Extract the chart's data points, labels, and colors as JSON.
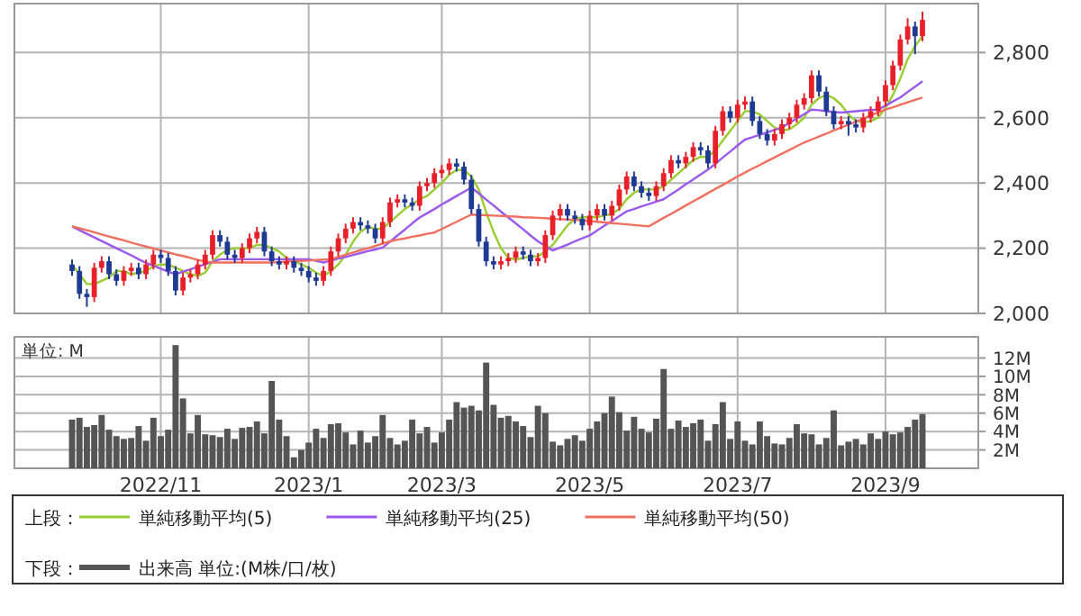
{
  "chart_data": [
    {
      "type": "candlestick",
      "categories": [
        null,
        null,
        null,
        null,
        null,
        null,
        null,
        null,
        null,
        null,
        null,
        null,
        "2022/11",
        null,
        null,
        null,
        null,
        null,
        null,
        null,
        null,
        null,
        null,
        null,
        null,
        null,
        null,
        null,
        null,
        null,
        null,
        null,
        "2023/1",
        null,
        null,
        null,
        null,
        null,
        null,
        null,
        null,
        null,
        null,
        null,
        null,
        null,
        null,
        null,
        null,
        null,
        "2023/3",
        null,
        null,
        null,
        null,
        null,
        null,
        null,
        null,
        null,
        null,
        null,
        null,
        null,
        null,
        null,
        null,
        null,
        null,
        null,
        "2023/5",
        null,
        null,
        null,
        null,
        null,
        null,
        null,
        null,
        null,
        null,
        null,
        null,
        null,
        null,
        null,
        null,
        null,
        null,
        null,
        "2023/7",
        null,
        null,
        null,
        null,
        null,
        null,
        null,
        null,
        null,
        null,
        null,
        null,
        null,
        null,
        null,
        null,
        null,
        null,
        null,
        "2023/9",
        null,
        null,
        null,
        null,
        null
      ],
      "ohlc": [
        [
          2150,
          2165,
          2115,
          2130
        ],
        [
          2130,
          2145,
          2045,
          2060
        ],
        [
          2060,
          2075,
          2020,
          2050
        ],
        [
          2050,
          2155,
          2035,
          2140
        ],
        [
          2140,
          2175,
          2125,
          2160
        ],
        [
          2160,
          2175,
          2105,
          2120
        ],
        [
          2120,
          2135,
          2085,
          2100
        ],
        [
          2100,
          2145,
          2085,
          2130
        ],
        [
          2130,
          2155,
          2115,
          2140
        ],
        [
          2140,
          2155,
          2105,
          2120
        ],
        [
          2120,
          2165,
          2105,
          2150
        ],
        [
          2150,
          2195,
          2135,
          2180
        ],
        [
          2180,
          2195,
          2155,
          2170
        ],
        [
          2170,
          2185,
          2115,
          2130
        ],
        [
          2130,
          2145,
          2055,
          2070
        ],
        [
          2070,
          2125,
          2055,
          2110
        ],
        [
          2110,
          2135,
          2095,
          2120
        ],
        [
          2120,
          2165,
          2105,
          2150
        ],
        [
          2150,
          2195,
          2135,
          2180
        ],
        [
          2180,
          2255,
          2165,
          2240
        ],
        [
          2240,
          2255,
          2205,
          2220
        ],
        [
          2220,
          2235,
          2165,
          2180
        ],
        [
          2180,
          2195,
          2155,
          2170
        ],
        [
          2170,
          2215,
          2155,
          2200
        ],
        [
          2200,
          2245,
          2185,
          2230
        ],
        [
          2230,
          2265,
          2215,
          2250
        ],
        [
          2250,
          2265,
          2175,
          2190
        ],
        [
          2190,
          2205,
          2145,
          2160
        ],
        [
          2160,
          2175,
          2135,
          2150
        ],
        [
          2150,
          2175,
          2135,
          2160
        ],
        [
          2160,
          2175,
          2125,
          2140
        ],
        [
          2140,
          2155,
          2115,
          2130
        ],
        [
          2130,
          2145,
          2095,
          2110
        ],
        [
          2110,
          2125,
          2085,
          2100
        ],
        [
          2100,
          2145,
          2085,
          2130
        ],
        [
          2130,
          2205,
          2115,
          2190
        ],
        [
          2190,
          2245,
          2175,
          2230
        ],
        [
          2230,
          2275,
          2215,
          2260
        ],
        [
          2260,
          2295,
          2245,
          2280
        ],
        [
          2280,
          2295,
          2255,
          2270
        ],
        [
          2270,
          2285,
          2245,
          2260
        ],
        [
          2260,
          2275,
          2215,
          2230
        ],
        [
          2230,
          2295,
          2215,
          2280
        ],
        [
          2280,
          2355,
          2265,
          2340
        ],
        [
          2340,
          2365,
          2325,
          2350
        ],
        [
          2350,
          2365,
          2325,
          2340
        ],
        [
          2340,
          2355,
          2315,
          2330
        ],
        [
          2330,
          2405,
          2315,
          2390
        ],
        [
          2390,
          2415,
          2375,
          2400
        ],
        [
          2400,
          2445,
          2385,
          2430
        ],
        [
          2430,
          2455,
          2415,
          2440
        ],
        [
          2440,
          2475,
          2425,
          2460
        ],
        [
          2460,
          2475,
          2435,
          2450
        ],
        [
          2450,
          2465,
          2395,
          2410
        ],
        [
          2410,
          2425,
          2305,
          2320
        ],
        [
          2320,
          2335,
          2205,
          2220
        ],
        [
          2220,
          2235,
          2145,
          2160
        ],
        [
          2160,
          2175,
          2135,
          2150
        ],
        [
          2150,
          2175,
          2135,
          2160
        ],
        [
          2160,
          2185,
          2145,
          2170
        ],
        [
          2170,
          2205,
          2155,
          2190
        ],
        [
          2190,
          2205,
          2165,
          2180
        ],
        [
          2180,
          2195,
          2145,
          2160
        ],
        [
          2160,
          2185,
          2145,
          2170
        ],
        [
          2170,
          2255,
          2155,
          2240
        ],
        [
          2240,
          2315,
          2225,
          2300
        ],
        [
          2300,
          2335,
          2285,
          2320
        ],
        [
          2320,
          2335,
          2285,
          2300
        ],
        [
          2300,
          2315,
          2275,
          2290
        ],
        [
          2290,
          2305,
          2255,
          2270
        ],
        [
          2270,
          2315,
          2255,
          2300
        ],
        [
          2300,
          2335,
          2285,
          2320
        ],
        [
          2320,
          2335,
          2285,
          2300
        ],
        [
          2300,
          2345,
          2285,
          2330
        ],
        [
          2330,
          2395,
          2315,
          2380
        ],
        [
          2380,
          2435,
          2365,
          2420
        ],
        [
          2420,
          2435,
          2375,
          2390
        ],
        [
          2390,
          2405,
          2355,
          2370
        ],
        [
          2370,
          2385,
          2345,
          2360
        ],
        [
          2360,
          2405,
          2345,
          2390
        ],
        [
          2390,
          2445,
          2375,
          2430
        ],
        [
          2430,
          2485,
          2415,
          2470
        ],
        [
          2470,
          2485,
          2445,
          2460
        ],
        [
          2460,
          2495,
          2445,
          2480
        ],
        [
          2480,
          2525,
          2465,
          2510
        ],
        [
          2510,
          2525,
          2485,
          2500
        ],
        [
          2500,
          2515,
          2445,
          2460
        ],
        [
          2460,
          2575,
          2445,
          2560
        ],
        [
          2560,
          2635,
          2545,
          2620
        ],
        [
          2620,
          2635,
          2585,
          2600
        ],
        [
          2600,
          2655,
          2585,
          2640
        ],
        [
          2640,
          2665,
          2625,
          2650
        ],
        [
          2650,
          2665,
          2575,
          2590
        ],
        [
          2590,
          2605,
          2535,
          2550
        ],
        [
          2550,
          2565,
          2515,
          2530
        ],
        [
          2530,
          2565,
          2515,
          2550
        ],
        [
          2550,
          2595,
          2535,
          2580
        ],
        [
          2580,
          2615,
          2565,
          2600
        ],
        [
          2600,
          2655,
          2585,
          2640
        ],
        [
          2640,
          2675,
          2625,
          2660
        ],
        [
          2660,
          2745,
          2645,
          2730
        ],
        [
          2730,
          2745,
          2665,
          2680
        ],
        [
          2680,
          2695,
          2605,
          2620
        ],
        [
          2620,
          2635,
          2565,
          2580
        ],
        [
          2580,
          2605,
          2565,
          2590
        ],
        [
          2590,
          2605,
          2545,
          2580
        ],
        [
          2580,
          2595,
          2555,
          2570
        ],
        [
          2570,
          2615,
          2555,
          2600
        ],
        [
          2600,
          2635,
          2585,
          2620
        ],
        [
          2620,
          2665,
          2605,
          2650
        ],
        [
          2650,
          2715,
          2635,
          2700
        ],
        [
          2700,
          2775,
          2685,
          2760
        ],
        [
          2760,
          2855,
          2745,
          2840
        ],
        [
          2840,
          2905,
          2825,
          2880
        ],
        [
          2880,
          2895,
          2795,
          2850
        ],
        [
          2850,
          2925,
          2835,
          2900
        ]
      ],
      "series": [
        {
          "name": "単純移動平均(5)",
          "type": "line",
          "color": "#9acd32",
          "values": [
            2150,
            2120,
            2090,
            2090,
            2100,
            2110,
            2130,
            2130,
            2120,
            2125,
            2130,
            2145,
            2150,
            2150,
            2140,
            2130,
            2120,
            2115,
            2125,
            2160,
            2180,
            2195,
            2200,
            2200,
            2200,
            2210,
            2210,
            2200,
            2190,
            2170,
            2160,
            2150,
            2140,
            2125,
            2115,
            2130,
            2150,
            2180,
            2220,
            2250,
            2265,
            2260,
            2260,
            2280,
            2300,
            2320,
            2335,
            2350,
            2360,
            2380,
            2400,
            2425,
            2440,
            2440,
            2420,
            2380,
            2310,
            2250,
            2200,
            2170,
            2165,
            2170,
            2175,
            2175,
            2190,
            2210,
            2240,
            2270,
            2290,
            2295,
            2295,
            2295,
            2300,
            2305,
            2320,
            2350,
            2370,
            2380,
            2380,
            2380,
            2390,
            2410,
            2430,
            2450,
            2470,
            2480,
            2480,
            2500,
            2530,
            2560,
            2590,
            2620,
            2620,
            2610,
            2590,
            2570,
            2560,
            2565,
            2580,
            2600,
            2640,
            2660,
            2670,
            2660,
            2640,
            2610,
            2590,
            2585,
            2590,
            2600,
            2630,
            2670,
            2720,
            2780,
            2820,
            2850
          ]
        },
        {
          "name": "単純移動平均(25)",
          "type": "line",
          "color": "#9b59f0",
          "values": [
            2267,
            2255,
            2244,
            2233,
            2222,
            2211,
            2200,
            2189,
            2178,
            2166,
            2155,
            2146,
            2137,
            2128,
            2120,
            2128,
            2135,
            2143,
            2151,
            2158,
            2166,
            2166,
            2166,
            2166,
            2166,
            2166,
            2166,
            2166,
            2166,
            2166,
            2166,
            2166,
            2166,
            2161,
            2156,
            2162,
            2168,
            2173,
            2179,
            2185,
            2191,
            2196,
            2202,
            2220,
            2239,
            2257,
            2276,
            2294,
            2307,
            2320,
            2334,
            2347,
            2360,
            2373,
            2386,
            2368,
            2349,
            2331,
            2312,
            2294,
            2276,
            2258,
            2239,
            2221,
            2207,
            2193,
            2202,
            2211,
            2221,
            2230,
            2239,
            2254,
            2269,
            2283,
            2298,
            2313,
            2320,
            2328,
            2335,
            2343,
            2350,
            2365,
            2380,
            2396,
            2411,
            2426,
            2441,
            2459,
            2478,
            2496,
            2515,
            2533,
            2540,
            2548,
            2555,
            2563,
            2570,
            2584,
            2598,
            2611,
            2625,
            2623,
            2620,
            2618,
            2616,
            2618,
            2620,
            2622,
            2624,
            2625,
            2637,
            2650,
            2662,
            2679,
            2695,
            2712
          ]
        },
        {
          "name": "単純移動平均(50)",
          "type": "line",
          "color": "#f07060",
          "values": [
            2267,
            2261,
            2255,
            2249,
            2242,
            2236,
            2230,
            2224,
            2217,
            2211,
            2205,
            2199,
            2193,
            2187,
            2181,
            2176,
            2170,
            2164,
            2159,
            2156,
            2156,
            2156,
            2156,
            2156,
            2156,
            2156,
            2156,
            2156,
            2157,
            2159,
            2160,
            2161,
            2162,
            2164,
            2165,
            2166,
            2173,
            2180,
            2187,
            2194,
            2200,
            2207,
            2214,
            2221,
            2226,
            2230,
            2235,
            2239,
            2244,
            2248,
            2259,
            2270,
            2281,
            2292,
            2303,
            2302,
            2301,
            2300,
            2299,
            2298,
            2297,
            2295,
            2294,
            2293,
            2292,
            2290,
            2289,
            2288,
            2287,
            2285,
            2283,
            2281,
            2279,
            2277,
            2275,
            2273,
            2271,
            2269,
            2267,
            2280,
            2293,
            2305,
            2318,
            2331,
            2344,
            2356,
            2369,
            2382,
            2394,
            2407,
            2420,
            2432,
            2444,
            2455,
            2467,
            2478,
            2490,
            2501,
            2513,
            2524,
            2533,
            2542,
            2551,
            2561,
            2570,
            2579,
            2588,
            2597,
            2607,
            2616,
            2625,
            2632,
            2640,
            2647,
            2655,
            2662
          ]
        }
      ],
      "ylim": [
        2000,
        2950
      ],
      "yticks": [
        {
          "value": 2000,
          "label": "2,000"
        },
        {
          "value": 2200,
          "label": "2,200"
        },
        {
          "value": 2400,
          "label": "2,400"
        },
        {
          "value": 2600,
          "label": "2,600"
        },
        {
          "value": 2800,
          "label": "2,800"
        }
      ],
      "grid": true,
      "legend": "bottom",
      "legend_title": "上段：",
      "tick_labels": "y"
    },
    {
      "type": "bar",
      "categories": [
        null,
        null,
        null,
        null,
        null,
        null,
        null,
        null,
        null,
        null,
        null,
        null,
        "2022/11",
        null,
        null,
        null,
        null,
        null,
        null,
        null,
        null,
        null,
        null,
        null,
        null,
        null,
        null,
        null,
        null,
        null,
        null,
        null,
        "2023/1",
        null,
        null,
        null,
        null,
        null,
        null,
        null,
        null,
        null,
        null,
        null,
        null,
        null,
        null,
        null,
        null,
        null,
        "2023/3",
        null,
        null,
        null,
        null,
        null,
        null,
        null,
        null,
        null,
        null,
        null,
        null,
        null,
        null,
        null,
        null,
        null,
        null,
        null,
        "2023/5",
        null,
        null,
        null,
        null,
        null,
        null,
        null,
        null,
        null,
        null,
        null,
        null,
        null,
        null,
        null,
        null,
        null,
        null,
        null,
        "2023/7",
        null,
        null,
        null,
        null,
        null,
        null,
        null,
        null,
        null,
        null,
        null,
        null,
        null,
        null,
        null,
        null,
        null,
        null,
        null,
        "2023/9",
        null,
        null,
        null,
        null,
        null
      ],
      "series": [
        {
          "name": "出来高 単位:(M株/口/枚)",
          "color": "#555555",
          "values": [
            5.3,
            5.5,
            4.5,
            4.7,
            5.8,
            4.2,
            3.5,
            3.2,
            3.3,
            4.6,
            3.0,
            5.5,
            3.5,
            4.2,
            13.4,
            7.6,
            3.8,
            5.8,
            3.7,
            3.6,
            3.4,
            4.3,
            3.2,
            4.4,
            4.5,
            5.1,
            3.8,
            9.5,
            5.3,
            3.5,
            1.2,
            2.0,
            2.8,
            4.3,
            3.3,
            4.8,
            4.9,
            3.9,
            2.6,
            4.1,
            2.8,
            3.5,
            5.8,
            3.3,
            2.6,
            3.0,
            5.3,
            3.8,
            4.5,
            2.8,
            3.9,
            5.3,
            7.2,
            6.6,
            6.8,
            6.3,
            11.5,
            6.9,
            5.5,
            5.7,
            5.1,
            4.6,
            3.4,
            6.8,
            6.0,
            2.9,
            2.5,
            3.2,
            3.6,
            3.0,
            4.3,
            5.1,
            6.0,
            7.8,
            6.1,
            4.1,
            5.6,
            4.3,
            3.9,
            5.4,
            10.8,
            4.3,
            5.2,
            4.5,
            4.9,
            5.3,
            3.0,
            4.8,
            7.2,
            3.2,
            5.1,
            3.0,
            2.6,
            5.1,
            3.5,
            2.7,
            2.6,
            3.3,
            4.8,
            3.8,
            3.7,
            2.6,
            3.3,
            6.3,
            2.5,
            2.9,
            3.2,
            2.6,
            3.8,
            3.2,
            4.0,
            3.7,
            3.9,
            4.5,
            5.3,
            5.9
          ]
        }
      ],
      "ylim": [
        0,
        14.3
      ],
      "yticks": [
        {
          "value": 2,
          "label": "2M"
        },
        {
          "value": 4,
          "label": "4M"
        },
        {
          "value": 6,
          "label": "6M"
        },
        {
          "value": 8,
          "label": "8M"
        },
        {
          "value": 10,
          "label": "10M"
        },
        {
          "value": 12,
          "label": "12M"
        }
      ],
      "grid": true,
      "legend": "bottom",
      "legend_title": "下段：",
      "annotations": [
        "単位: M"
      ]
    }
  ]
}
